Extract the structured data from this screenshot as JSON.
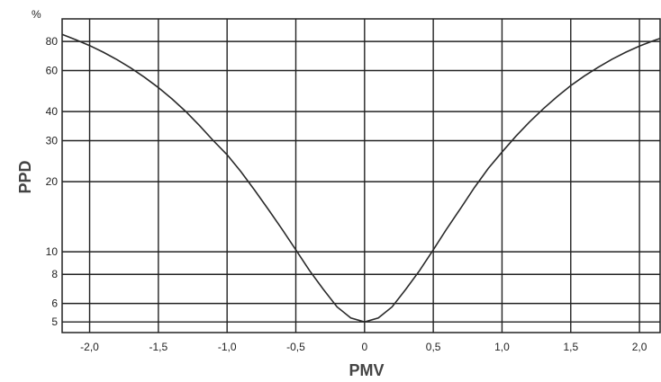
{
  "chart_data": {
    "type": "line",
    "title": "",
    "xlabel": "PMV",
    "ylabel": "PPD",
    "yunit": "%",
    "yscale": "log",
    "xlim": [
      -2.2,
      2.15
    ],
    "ylim": [
      4.5,
      100
    ],
    "grid": true,
    "x_ticks": [
      -2.0,
      -1.5,
      -1.0,
      -0.5,
      0,
      0.5,
      1.0,
      1.5,
      2.0
    ],
    "x_tick_labels": [
      "-2,0",
      "-1,5",
      "-1,0",
      "-0,5",
      "0",
      "0,5",
      "1,0",
      "1,5",
      "2,0"
    ],
    "y_ticks": [
      5,
      6,
      8,
      10,
      20,
      30,
      40,
      60,
      80
    ],
    "y_tick_labels": [
      "5",
      "6",
      "8",
      "10",
      "20",
      "30",
      "40",
      "60",
      "80"
    ],
    "series": [
      {
        "x": [
          -2.2,
          -2.1,
          -2.0,
          -1.9,
          -1.8,
          -1.7,
          -1.6,
          -1.5,
          -1.4,
          -1.3,
          -1.2,
          -1.1,
          -1.0,
          -0.9,
          -0.8,
          -0.7,
          -0.6,
          -0.5,
          -0.4,
          -0.3,
          -0.2,
          -0.1,
          0,
          0.1,
          0.2,
          0.3,
          0.4,
          0.5,
          0.6,
          0.7,
          0.8,
          0.9,
          1.0,
          1.1,
          1.2,
          1.3,
          1.4,
          1.5,
          1.6,
          1.7,
          1.8,
          1.9,
          2.0,
          2.1,
          2.15
        ],
        "y": [
          85.8,
          81.3,
          76.8,
          71.9,
          66.8,
          61.5,
          56.1,
          50.7,
          45.3,
          40.0,
          34.8,
          30.0,
          26.1,
          22.1,
          18.4,
          15.2,
          12.5,
          10.2,
          8.3,
          6.9,
          5.8,
          5.2,
          5.0,
          5.2,
          5.8,
          6.9,
          8.3,
          10.2,
          12.6,
          15.4,
          18.9,
          22.8,
          26.8,
          31.3,
          36.1,
          41.1,
          46.3,
          51.7,
          56.9,
          62.0,
          67.1,
          71.9,
          76.4,
          80.5,
          82.4
        ]
      }
    ]
  }
}
